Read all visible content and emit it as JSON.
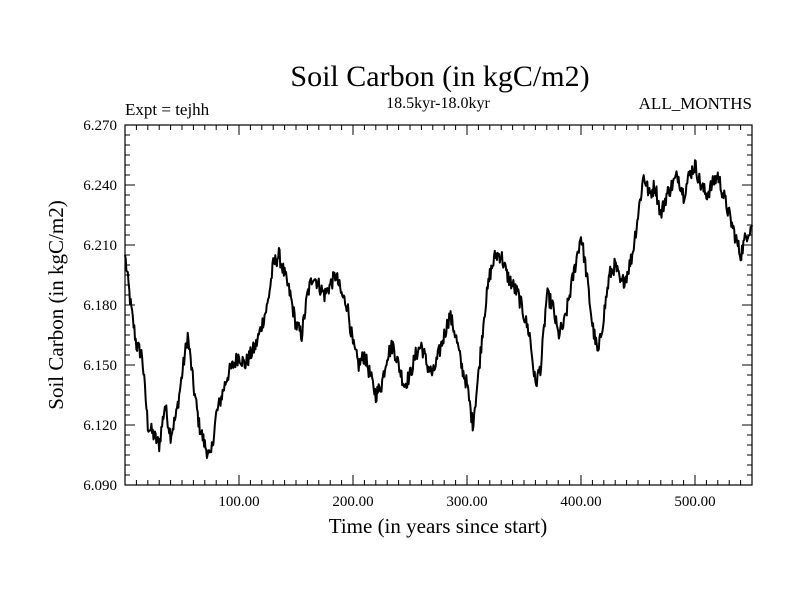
{
  "chart_data": {
    "type": "line",
    "title": "Soil Carbon (in kgC/m2)",
    "subtitle": "18.5kyr-18.0kyr",
    "left_label": "Expt = tejhh",
    "right_label": "ALL_MONTHS",
    "xlabel": "Time (in years since start)",
    "ylabel": "Soil Carbon (in kgC/m2)",
    "xlim": [
      0,
      550
    ],
    "ylim": [
      6.09,
      6.27
    ],
    "x_ticks": [
      100,
      200,
      300,
      400,
      500
    ],
    "x_tick_labels": [
      "100.00",
      "200.00",
      "300.00",
      "400.00",
      "500.00"
    ],
    "y_ticks": [
      6.09,
      6.12,
      6.15,
      6.18,
      6.21,
      6.24,
      6.27
    ],
    "y_tick_labels": [
      "6.090",
      "6.120",
      "6.150",
      "6.180",
      "6.210",
      "6.240",
      "6.270"
    ],
    "line_color": "#000000",
    "series": [
      {
        "name": "Soil Carbon",
        "x": [
          0,
          5,
          10,
          15,
          20,
          25,
          30,
          35,
          40,
          45,
          50,
          55,
          60,
          65,
          70,
          75,
          80,
          85,
          90,
          95,
          100,
          105,
          110,
          115,
          120,
          125,
          130,
          135,
          140,
          145,
          150,
          155,
          160,
          165,
          170,
          175,
          180,
          185,
          190,
          195,
          200,
          205,
          210,
          215,
          220,
          225,
          230,
          235,
          240,
          245,
          250,
          255,
          260,
          265,
          270,
          275,
          280,
          285,
          290,
          295,
          300,
          305,
          310,
          315,
          320,
          325,
          330,
          335,
          340,
          345,
          350,
          355,
          360,
          365,
          370,
          375,
          380,
          385,
          390,
          395,
          400,
          405,
          410,
          415,
          420,
          425,
          430,
          435,
          440,
          445,
          450,
          455,
          460,
          465,
          470,
          475,
          480,
          485,
          490,
          495,
          500,
          505,
          510,
          515,
          520,
          525,
          530,
          535,
          540,
          545,
          550
        ],
        "y": [
          6.205,
          6.18,
          6.16,
          6.155,
          6.12,
          6.115,
          6.11,
          6.13,
          6.115,
          6.125,
          6.145,
          6.165,
          6.14,
          6.12,
          6.11,
          6.103,
          6.125,
          6.135,
          6.145,
          6.15,
          6.155,
          6.15,
          6.155,
          6.16,
          6.17,
          6.18,
          6.2,
          6.205,
          6.195,
          6.185,
          6.17,
          6.165,
          6.185,
          6.195,
          6.19,
          6.185,
          6.19,
          6.195,
          6.185,
          6.18,
          6.16,
          6.15,
          6.155,
          6.145,
          6.135,
          6.14,
          6.155,
          6.16,
          6.15,
          6.14,
          6.145,
          6.155,
          6.16,
          6.15,
          6.145,
          6.155,
          6.165,
          6.175,
          6.165,
          6.15,
          6.14,
          6.12,
          6.145,
          6.175,
          6.195,
          6.205,
          6.205,
          6.195,
          6.19,
          6.185,
          6.175,
          6.165,
          6.14,
          6.15,
          6.185,
          6.18,
          6.165,
          6.17,
          6.185,
          6.2,
          6.215,
          6.195,
          6.17,
          6.155,
          6.175,
          6.195,
          6.2,
          6.19,
          6.195,
          6.205,
          6.225,
          6.245,
          6.235,
          6.24,
          6.225,
          6.235,
          6.24,
          6.245,
          6.235,
          6.245,
          6.25,
          6.24,
          6.235,
          6.24,
          6.245,
          6.235,
          6.225,
          6.215,
          6.205,
          6.215,
          6.22
        ]
      }
    ]
  }
}
